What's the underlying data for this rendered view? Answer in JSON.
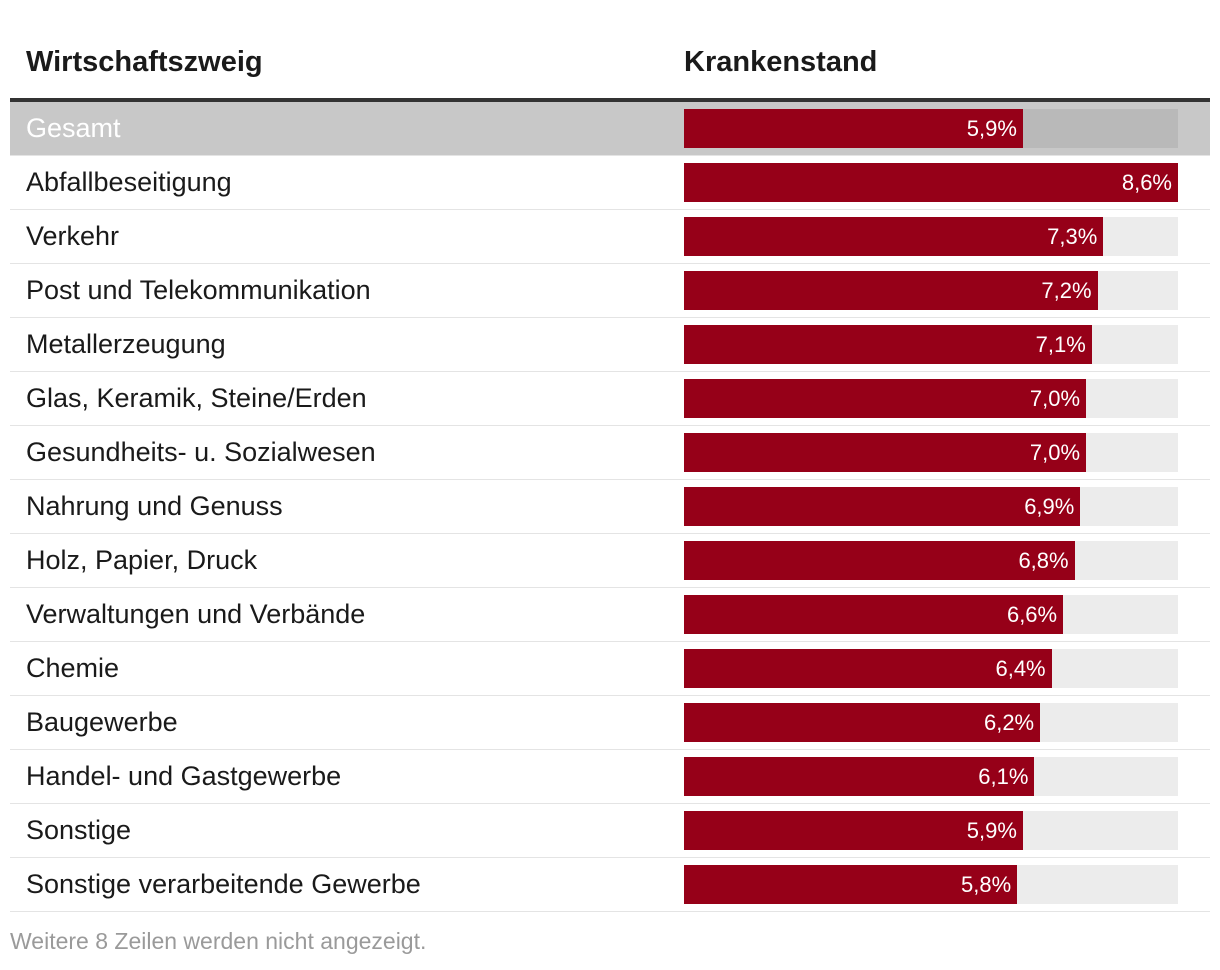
{
  "chart_data": {
    "type": "bar",
    "orientation": "horizontal",
    "title": "",
    "columns": {
      "label": "Wirtschaftszweig",
      "value": "Krankenstand"
    },
    "xlim": [
      0,
      8.6
    ],
    "unit": "%",
    "rows": [
      {
        "label": "Gesamt",
        "value": 5.9,
        "display": "5,9%",
        "highlight": true
      },
      {
        "label": "Abfallbeseitigung",
        "value": 8.6,
        "display": "8,6%"
      },
      {
        "label": "Verkehr",
        "value": 7.3,
        "display": "7,3%"
      },
      {
        "label": "Post und Telekommunikation",
        "value": 7.2,
        "display": "7,2%"
      },
      {
        "label": "Metallerzeugung",
        "value": 7.1,
        "display": "7,1%"
      },
      {
        "label": "Glas, Keramik, Steine/Erden",
        "value": 7.0,
        "display": "7,0%"
      },
      {
        "label": "Gesundheits- u. Sozialwesen",
        "value": 7.0,
        "display": "7,0%"
      },
      {
        "label": "Nahrung und Genuss",
        "value": 6.9,
        "display": "6,9%"
      },
      {
        "label": "Holz, Papier, Druck",
        "value": 6.8,
        "display": "6,8%"
      },
      {
        "label": "Verwaltungen und Verbände",
        "value": 6.6,
        "display": "6,6%"
      },
      {
        "label": "Chemie",
        "value": 6.4,
        "display": "6,4%"
      },
      {
        "label": "Baugewerbe",
        "value": 6.2,
        "display": "6,2%"
      },
      {
        "label": "Handel- und Gastgewerbe",
        "value": 6.1,
        "display": "6,1%"
      },
      {
        "label": "Sonstige",
        "value": 5.9,
        "display": "5,9%"
      },
      {
        "label": "Sonstige verarbeitende Gewerbe",
        "value": 5.8,
        "display": "5,8%"
      }
    ],
    "footnote": "Weitere 8 Zeilen werden nicht angezeigt."
  },
  "colors": {
    "bar": "#960018",
    "track": "#ececec",
    "highlight_row": "#c8c8c8",
    "highlight_track": "#b9b9b9"
  }
}
